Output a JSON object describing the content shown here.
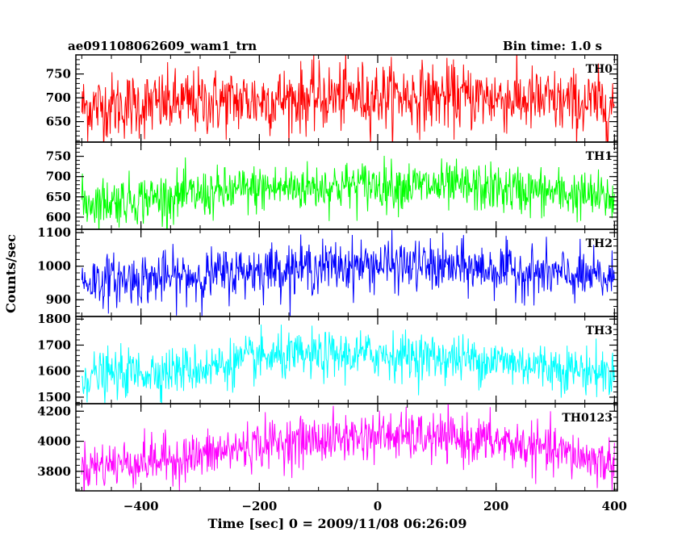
{
  "header": {
    "left_title": "ae091108062609_wam1_trn",
    "right_title": "Bin time: 1.0 s"
  },
  "chart_data": {
    "type": "line",
    "xlabel": "Time [sec] 0 = 2009/11/08 06:26:09",
    "ylabel": "Counts/sec",
    "xlim": [
      -510,
      405
    ],
    "xticks": [
      -400,
      -200,
      0,
      200,
      400
    ],
    "panels": [
      {
        "name": "TH0",
        "color": "#ff0000",
        "ylim": [
          607,
          790
        ],
        "yticks": [
          650,
          700,
          750
        ],
        "baseline_profile": [
          [
            -500,
            680
          ],
          [
            -300,
            690
          ],
          [
            -200,
            695
          ],
          [
            0,
            705
          ],
          [
            200,
            700
          ],
          [
            300,
            690
          ],
          [
            400,
            685
          ]
        ],
        "noise_sd": 35
      },
      {
        "name": "TH1",
        "color": "#00ff00",
        "ylim": [
          570,
          785
        ],
        "yticks": [
          600,
          650,
          700,
          750
        ],
        "baseline_profile": [
          [
            -500,
            635
          ],
          [
            -300,
            655
          ],
          [
            -200,
            670
          ],
          [
            0,
            680
          ],
          [
            200,
            670
          ],
          [
            300,
            660
          ],
          [
            400,
            645
          ]
        ],
        "noise_sd": 30
      },
      {
        "name": "TH2",
        "color": "#0000ff",
        "ylim": [
          850,
          1110
        ],
        "yticks": [
          900,
          1000,
          1100
        ],
        "baseline_profile": [
          [
            -500,
            955
          ],
          [
            -300,
            970
          ],
          [
            -200,
            990
          ],
          [
            0,
            1005
          ],
          [
            200,
            990
          ],
          [
            300,
            975
          ],
          [
            400,
            960
          ]
        ],
        "noise_sd": 38
      },
      {
        "name": "TH3",
        "color": "#00ffff",
        "ylim": [
          1475,
          1810
        ],
        "yticks": [
          1500,
          1600,
          1700,
          1800
        ],
        "baseline_profile": [
          [
            -500,
            1580
          ],
          [
            -300,
            1610
          ],
          [
            -200,
            1650
          ],
          [
            0,
            1665
          ],
          [
            200,
            1640
          ],
          [
            300,
            1615
          ],
          [
            400,
            1590
          ]
        ],
        "noise_sd": 45
      },
      {
        "name": "TH0123",
        "color": "#ff00ff",
        "ylim": [
          3670,
          4250
        ],
        "yticks": [
          3800,
          4000,
          4200
        ],
        "baseline_profile": [
          [
            -500,
            3830
          ],
          [
            -300,
            3900
          ],
          [
            -200,
            3980
          ],
          [
            0,
            4040
          ],
          [
            200,
            4000
          ],
          [
            300,
            3930
          ],
          [
            400,
            3850
          ]
        ],
        "noise_sd": 80
      }
    ]
  }
}
